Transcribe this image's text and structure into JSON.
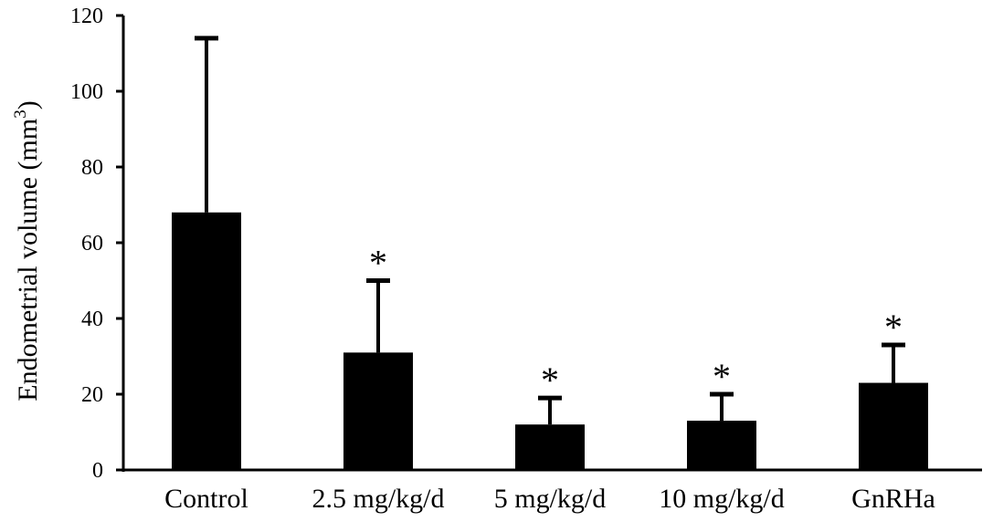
{
  "chart_data": {
    "type": "bar",
    "title": "",
    "xlabel": "",
    "ylabel": "Endometrial volume (mm",
    "ylabel_superscript": "3",
    "ylabel_suffix": ")",
    "ylim": [
      0,
      120
    ],
    "yticks": [
      0,
      20,
      40,
      60,
      80,
      100,
      120
    ],
    "grid": false,
    "bar_color": "#000000",
    "categories": [
      "Control",
      "2.5 mg/kg/d",
      "5 mg/kg/d",
      "10 mg/kg/d",
      "GnRHa"
    ],
    "values": [
      68,
      31,
      12,
      13,
      23
    ],
    "error_upper": [
      46,
      19,
      7,
      7,
      10
    ],
    "significance": [
      "",
      "*",
      "*",
      "*",
      "*"
    ]
  }
}
